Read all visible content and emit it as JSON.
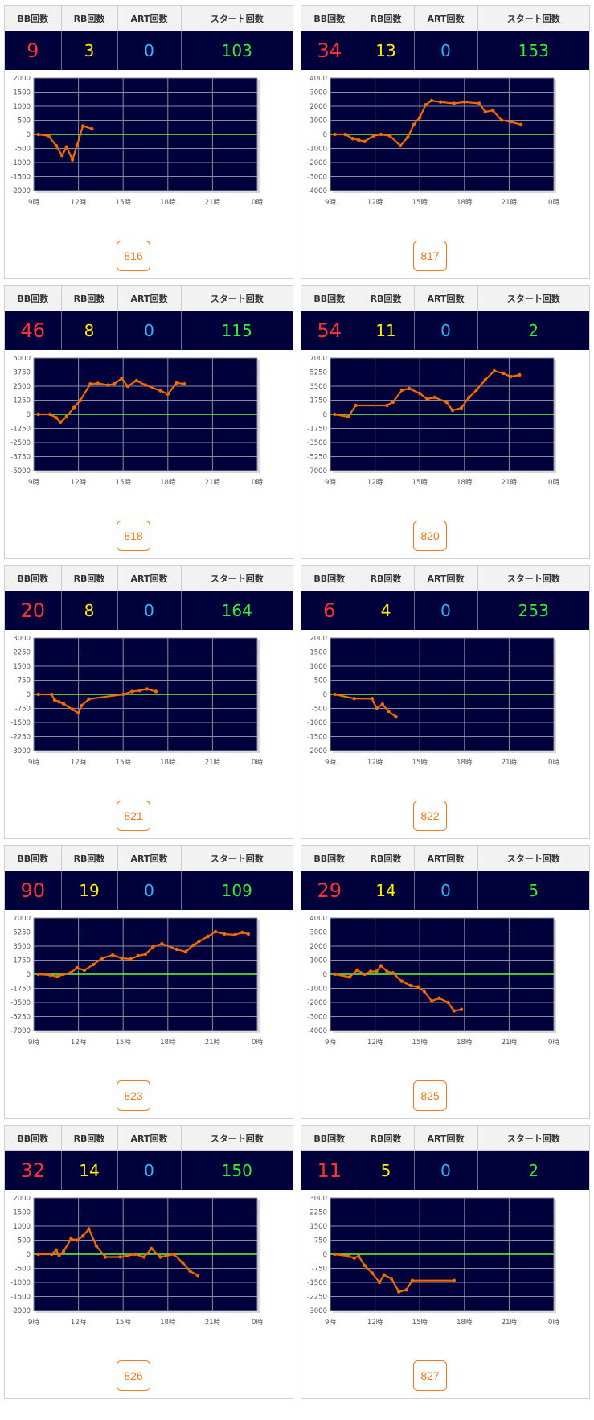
{
  "headers": {
    "bb": "BB回数",
    "rb": "RB回数",
    "art": "ART回数",
    "start": "スタート回数"
  },
  "x_ticks": [
    "9時",
    "12時",
    "15時",
    "18時",
    "21時",
    "0時"
  ],
  "colors": {
    "plot_bg": "#00003a",
    "grid": "#8a8aa0",
    "zero_line": "#66ff33",
    "series": "#f26b00",
    "bb": "#ff3333",
    "rb": "#ffee00",
    "art": "#33b5ff",
    "start": "#33ee33"
  },
  "machines": [
    {
      "id": "816",
      "bb": "9",
      "rb": "3",
      "art": "0",
      "start": "103",
      "chart_data": {
        "type": "line",
        "x_range": [
          9,
          24
        ],
        "ylim": [
          -2000,
          2000
        ],
        "y_ticks": [
          2000,
          1500,
          1000,
          500,
          0,
          -500,
          -1000,
          -1500,
          -2000
        ],
        "x": [
          9.3,
          10.0,
          10.5,
          10.9,
          11.2,
          11.6,
          11.9,
          12.3,
          12.9
        ],
        "y": [
          0,
          -50,
          -400,
          -750,
          -450,
          -900,
          -400,
          300,
          200
        ]
      }
    },
    {
      "id": "817",
      "bb": "34",
      "rb": "13",
      "art": "0",
      "start": "153",
      "chart_data": {
        "type": "line",
        "x_range": [
          9,
          24
        ],
        "ylim": [
          -4000,
          4000
        ],
        "y_ticks": [
          4000,
          3000,
          2000,
          1000,
          0,
          -1000,
          -2000,
          -3000,
          -4000
        ],
        "x": [
          9.3,
          10.0,
          10.5,
          10.9,
          11.3,
          11.9,
          12.4,
          13.0,
          13.7,
          14.2,
          14.6,
          15.0,
          15.4,
          15.8,
          16.4,
          17.3,
          18.0,
          19.0,
          19.4,
          19.9,
          20.5,
          21.1,
          21.8
        ],
        "y": [
          0,
          0,
          -300,
          -400,
          -500,
          -100,
          0,
          -100,
          -800,
          -200,
          700,
          1200,
          2100,
          2400,
          2300,
          2200,
          2300,
          2200,
          1600,
          1700,
          1000,
          900,
          700
        ]
      }
    },
    {
      "id": "818",
      "bb": "46",
      "rb": "8",
      "art": "0",
      "start": "115",
      "chart_data": {
        "type": "line",
        "x_range": [
          9,
          24
        ],
        "ylim": [
          -5000,
          5000
        ],
        "y_ticks": [
          5000,
          3750,
          2500,
          1250,
          0,
          -1250,
          -2500,
          -3750,
          -5000
        ],
        "x": [
          9.3,
          10.1,
          10.5,
          10.8,
          11.2,
          11.7,
          12.1,
          12.8,
          13.3,
          14.0,
          14.4,
          14.9,
          15.3,
          15.9,
          16.5,
          17.5,
          18.0,
          18.6,
          19.1
        ],
        "y": [
          0,
          0,
          -300,
          -700,
          -200,
          600,
          1200,
          2700,
          2750,
          2600,
          2700,
          3200,
          2500,
          3000,
          2600,
          2100,
          1800,
          2800,
          2700
        ]
      }
    },
    {
      "id": "820",
      "bb": "54",
      "rb": "11",
      "art": "0",
      "start": "2",
      "chart_data": {
        "type": "line",
        "x_range": [
          9,
          24
        ],
        "ylim": [
          -7000,
          7000
        ],
        "y_ticks": [
          7000,
          5250,
          3500,
          1750,
          0,
          -1750,
          -3500,
          -5250,
          -7000
        ],
        "x": [
          9.3,
          10.2,
          10.7,
          12.8,
          13.2,
          13.8,
          14.3,
          15.0,
          15.5,
          16.0,
          16.8,
          17.2,
          17.8,
          18.3,
          18.8,
          19.4,
          20.0,
          20.6,
          21.1,
          21.7
        ],
        "y": [
          0,
          -300,
          1100,
          1100,
          1500,
          3000,
          3200,
          2600,
          1900,
          2100,
          1500,
          500,
          800,
          2100,
          3000,
          4300,
          5400,
          5100,
          4700,
          4900
        ]
      }
    },
    {
      "id": "821",
      "bb": "20",
      "rb": "8",
      "art": "0",
      "start": "164",
      "chart_data": {
        "type": "line",
        "x_range": [
          9,
          24
        ],
        "ylim": [
          -3000,
          3000
        ],
        "y_ticks": [
          3000,
          2250,
          1500,
          750,
          0,
          -750,
          -1500,
          -2250,
          -3000
        ],
        "x": [
          9.3,
          10.2,
          10.4,
          10.7,
          11.0,
          11.6,
          12.0,
          12.2,
          12.7,
          15.0,
          15.6,
          16.1,
          16.6,
          17.2
        ],
        "y": [
          0,
          0,
          -300,
          -400,
          -500,
          -800,
          -1000,
          -600,
          -250,
          0,
          150,
          200,
          280,
          150
        ]
      }
    },
    {
      "id": "822",
      "bb": "6",
      "rb": "4",
      "art": "0",
      "start": "253",
      "chart_data": {
        "type": "line",
        "x_range": [
          9,
          24
        ],
        "ylim": [
          -2000,
          2000
        ],
        "y_ticks": [
          2000,
          1500,
          1000,
          500,
          0,
          -500,
          -1000,
          -1500,
          -2000
        ],
        "x": [
          9.3,
          10.6,
          11.8,
          12.1,
          12.5,
          12.9,
          13.4
        ],
        "y": [
          0,
          -150,
          -150,
          -500,
          -350,
          -600,
          -800
        ]
      }
    },
    {
      "id": "823",
      "bb": "90",
      "rb": "19",
      "art": "0",
      "start": "109",
      "chart_data": {
        "type": "line",
        "x_range": [
          9,
          24
        ],
        "ylim": [
          -7000,
          7000
        ],
        "y_ticks": [
          7000,
          5250,
          3500,
          1750,
          0,
          -1750,
          -3500,
          -5250,
          -7000
        ],
        "x": [
          9.3,
          10.1,
          10.6,
          11.0,
          11.5,
          11.9,
          12.4,
          13.0,
          13.6,
          14.3,
          14.9,
          15.5,
          16.0,
          16.5,
          17.0,
          17.6,
          18.6,
          19.2,
          19.7,
          20.1,
          20.7,
          21.2,
          21.8,
          22.5,
          23.0,
          23.4
        ],
        "y": [
          0,
          -100,
          -300,
          0,
          200,
          800,
          500,
          1200,
          2000,
          2400,
          2000,
          1900,
          2300,
          2500,
          3400,
          3800,
          3100,
          2800,
          3600,
          4100,
          4700,
          5300,
          5000,
          4900,
          5200,
          5000
        ]
      }
    },
    {
      "id": "825",
      "bb": "29",
      "rb": "14",
      "art": "0",
      "start": "5",
      "chart_data": {
        "type": "line",
        "x_range": [
          9,
          24
        ],
        "ylim": [
          -4000,
          4000
        ],
        "y_ticks": [
          4000,
          3000,
          2000,
          1000,
          0,
          -1000,
          -2000,
          -3000,
          -4000
        ],
        "x": [
          9.3,
          10.3,
          10.8,
          11.3,
          11.7,
          12.1,
          12.4,
          12.8,
          13.2,
          13.8,
          14.4,
          14.9,
          15.3,
          15.8,
          16.3,
          16.9,
          17.3,
          17.8
        ],
        "y": [
          0,
          -200,
          300,
          0,
          200,
          200,
          600,
          200,
          100,
          -500,
          -800,
          -900,
          -1200,
          -1900,
          -1700,
          -2000,
          -2600,
          -2500
        ]
      }
    },
    {
      "id": "826",
      "bb": "32",
      "rb": "14",
      "art": "0",
      "start": "150",
      "chart_data": {
        "type": "line",
        "x_range": [
          9,
          24
        ],
        "ylim": [
          -2000,
          2000
        ],
        "y_ticks": [
          2000,
          1500,
          1000,
          500,
          0,
          -500,
          -1000,
          -1500,
          -2000
        ],
        "x": [
          9.3,
          10.2,
          10.5,
          10.7,
          11.0,
          11.5,
          11.9,
          12.3,
          12.7,
          13.2,
          13.8,
          14.8,
          15.3,
          15.8,
          16.4,
          16.9,
          17.5,
          18.4,
          19.0,
          19.5,
          20.0
        ],
        "y": [
          0,
          0,
          150,
          -50,
          100,
          550,
          500,
          650,
          900,
          300,
          -100,
          -100,
          -50,
          0,
          -100,
          200,
          -100,
          0,
          -300,
          -600,
          -750
        ]
      }
    },
    {
      "id": "827",
      "bb": "11",
      "rb": "5",
      "art": "0",
      "start": "2",
      "chart_data": {
        "type": "line",
        "x_range": [
          9,
          24
        ],
        "ylim": [
          -3000,
          3000
        ],
        "y_ticks": [
          3000,
          2250,
          1500,
          750,
          0,
          -750,
          -1500,
          -2250,
          -3000
        ],
        "x": [
          9.3,
          10.2,
          10.6,
          10.9,
          11.3,
          11.8,
          12.3,
          12.6,
          13.1,
          13.6,
          14.1,
          14.5,
          17.3
        ],
        "y": [
          0,
          -100,
          -200,
          -100,
          -600,
          -1000,
          -1500,
          -1100,
          -1300,
          -2000,
          -1900,
          -1400,
          -1400
        ]
      }
    }
  ]
}
